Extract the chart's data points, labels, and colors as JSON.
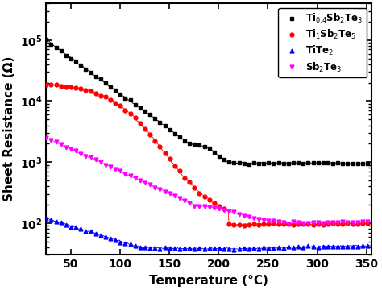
{
  "xlabel": "Temperature (°C)",
  "ylabel": "Sheet Resistance (Ω)",
  "xlim": [
    25,
    355
  ],
  "ylim": [
    30,
    400000.0
  ],
  "xticks": [
    50,
    100,
    150,
    200,
    250,
    300,
    350
  ],
  "series": [
    {
      "label": "Ti$_{0.4}$Sb$_2$Te$_3$",
      "color": "#000000",
      "marker": "s",
      "markersize": 3.5
    },
    {
      "label": "Ti$_1$Sb$_2$Te$_5$",
      "color": "#ff0000",
      "marker": "o",
      "markersize": 3.5
    },
    {
      "label": "TiTe$_2$",
      "color": "#0000ff",
      "marker": "^",
      "markersize": 3.5
    },
    {
      "label": "Sb$_2$Te$_3$",
      "color": "#ff00ff",
      "marker": "v",
      "markersize": 3.5
    }
  ],
  "background_color": "#ffffff",
  "legend_fontsize": 8.5,
  "axis_fontsize": 11,
  "tick_fontsize": 10
}
